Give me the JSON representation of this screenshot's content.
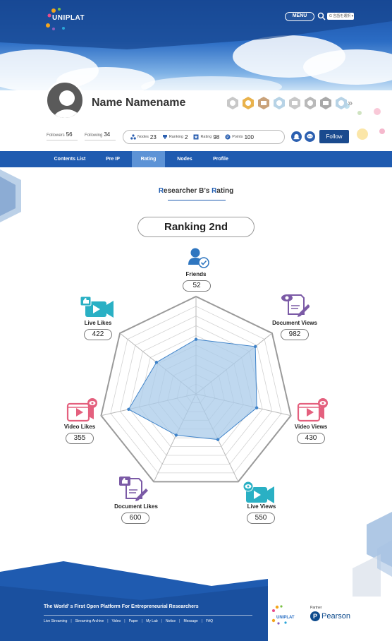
{
  "header": {
    "logo_text": "UNIPLAT",
    "menu_label": "MENU",
    "language_label": "G 言語を選択 ▾"
  },
  "profile": {
    "name": "Name Namename",
    "followers_label": "Followers",
    "followers_value": "56",
    "following_label": "Following",
    "following_value": "34",
    "stats": [
      {
        "label": "Nodes",
        "value": "23",
        "icon": "nodes-icon"
      },
      {
        "label": "Ranking",
        "value": "2",
        "icon": "trophy-icon"
      },
      {
        "label": "Rating",
        "value": "98",
        "icon": "star-icon"
      },
      {
        "label": "Points",
        "value": "100",
        "icon": "points-icon"
      }
    ],
    "follow_label": "Follow",
    "badges_more": "»"
  },
  "tabs": [
    {
      "label": "Contents List",
      "active": false
    },
    {
      "label": "Pre IP",
      "active": false
    },
    {
      "label": "Rating",
      "active": true
    },
    {
      "label": "Nodes",
      "active": false
    },
    {
      "label": "Profile",
      "active": false
    }
  ],
  "rating": {
    "title_prefix": "R",
    "title_middle": "esearcher B’s ",
    "title_r2": "R",
    "title_suffix": "ating",
    "ranking_text": "Ranking  2nd"
  },
  "chart_data": {
    "type": "radar",
    "axes": [
      "Friends",
      "Document Views",
      "Video Views",
      "Live Views",
      "Document Likes",
      "Video Likes",
      "Live Likes"
    ],
    "values": [
      52,
      982,
      430,
      550,
      600,
      355,
      422
    ],
    "normalized": [
      0.56,
      0.78,
      0.64,
      0.52,
      0.47,
      0.71,
      0.52
    ],
    "labels": {
      "friends": {
        "label": "Friends",
        "value": "52"
      },
      "document_views": {
        "label": "Document Views",
        "value": "982"
      },
      "video_views": {
        "label": "Video Views",
        "value": "430"
      },
      "live_views": {
        "label": "Live Views",
        "value": "550"
      },
      "document_likes": {
        "label": "Document Likes",
        "value": "600"
      },
      "video_likes": {
        "label": "Video Likes",
        "value": "355"
      },
      "live_likes": {
        "label": "Live Likes",
        "value": "422"
      }
    },
    "fill_color": "#a9cbea",
    "stroke_color": "#3f83c9",
    "grid_color": "#aaaaaa"
  },
  "footer": {
    "tagline": "The World’ s First Open Platform For Entrepreneurial Researchers",
    "links": [
      "Live Streaming",
      "Streaming Archive",
      "Video",
      "Paper",
      "My Lab",
      "Notice",
      "Message",
      "FAQ"
    ],
    "separator": "|",
    "logo_text": "UNIPLAT",
    "partner_label": "Partner",
    "partner_name": "Pearson",
    "partner_initial": "P"
  }
}
